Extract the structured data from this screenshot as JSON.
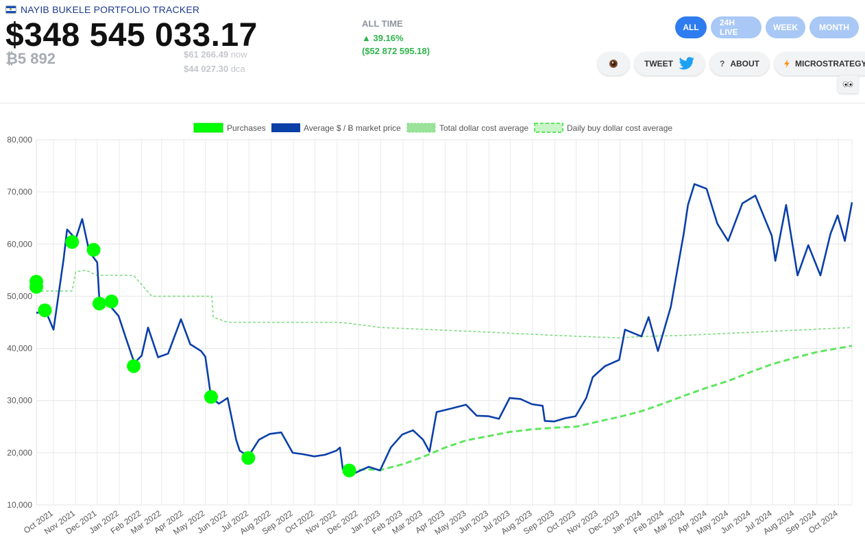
{
  "header": {
    "brand": "NAYIB BUKELE PORTFOLIO TRACKER",
    "total_value": "$348 545 033.17",
    "btc_holdings": "₿5 892",
    "price_now": "$61 266.49",
    "price_now_label": "now",
    "price_dca": "$44 027.30",
    "price_dca_label": "dca",
    "all_time_label": "ALL TIME",
    "all_time_pct": "▲ 39.16%",
    "all_time_amount": "($52 872 595.18)"
  },
  "tabs": [
    {
      "label": "ALL",
      "active": true
    },
    {
      "label": "24H LIVE",
      "active": false
    },
    {
      "label": "WEEK",
      "active": false
    },
    {
      "label": "MONTH",
      "active": false
    }
  ],
  "actions": {
    "coffee_icon": "coffee-icon",
    "tweet_label": "TWEET",
    "about_label": "ABOUT",
    "microstrategy_label": "MICROSTRATEGY",
    "eyes_icon": "eyes-icon"
  },
  "colors": {
    "accent": "#2f7cf0",
    "tab_inactive": "#a9c8f5",
    "positive": "#2db34a",
    "price_line": "#0a3fa8",
    "purchases": "#00ff00",
    "total_dca": "#7fdc7f",
    "daily_dca": "#5ee65e"
  },
  "chart_data": {
    "type": "line",
    "legend": [
      "Purchases",
      "Average $ / Ƀ market price",
      "Total dollar cost average",
      "Daily buy dollar cost average"
    ],
    "legend_position": "top-center",
    "x_ticks": [
      "Oct 2021",
      "Nov 2021",
      "Dec 2021",
      "Jan 2022",
      "Feb 2022",
      "Mar 2022",
      "Apr 2022",
      "May 2022",
      "Jun 2022",
      "Jul 2022",
      "Aug 2022",
      "Sep 2022",
      "Oct 2022",
      "Nov 2022",
      "Dec 2022",
      "Jan 2023",
      "Feb 2023",
      "Mar 2023",
      "Apr 2023",
      "May 2023",
      "Jun 2023",
      "Jul 2023",
      "Aug 2023",
      "Sep 2023",
      "Oct 2023",
      "Nov 2023",
      "Dec 2023",
      "Jan 2024",
      "Feb 2024",
      "Mar 2024",
      "Apr 2024",
      "May 2024",
      "Jun 2024",
      "Jul 2024",
      "Aug 2024",
      "Sep 2024",
      "Oct 2024"
    ],
    "y_ticks": [
      "10,000",
      "20,000",
      "30,000",
      "40,000",
      "50,000",
      "60,000",
      "70,000",
      "80,000"
    ],
    "ylim": [
      10000,
      80000
    ],
    "grid": true,
    "series": [
      {
        "name": "Average $ / Ƀ market price",
        "x": [
          "2021-09-07",
          "2021-09-20",
          "2021-10-01",
          "2021-10-15",
          "2021-10-20",
          "2021-11-01",
          "2021-11-10",
          "2021-11-20",
          "2021-12-01",
          "2021-12-04",
          "2021-12-15",
          "2021-12-31",
          "2022-01-10",
          "2022-01-22",
          "2022-02-01",
          "2022-02-10",
          "2022-02-24",
          "2022-03-10",
          "2022-03-28",
          "2022-04-10",
          "2022-04-25",
          "2022-05-01",
          "2022-05-09",
          "2022-05-20",
          "2022-06-01",
          "2022-06-13",
          "2022-06-18",
          "2022-06-30",
          "2022-07-15",
          "2022-07-30",
          "2022-08-15",
          "2022-08-31",
          "2022-09-15",
          "2022-09-30",
          "2022-10-15",
          "2022-10-31",
          "2022-11-05",
          "2022-11-09",
          "2022-11-21",
          "2022-12-15",
          "2022-12-31",
          "2023-01-15",
          "2023-01-31",
          "2023-02-15",
          "2023-03-01",
          "2023-03-10",
          "2023-03-20",
          "2023-04-10",
          "2023-04-30",
          "2023-05-15",
          "2023-06-01",
          "2023-06-15",
          "2023-06-30",
          "2023-07-15",
          "2023-07-31",
          "2023-08-15",
          "2023-08-18",
          "2023-08-31",
          "2023-09-15",
          "2023-09-30",
          "2023-10-15",
          "2023-10-24",
          "2023-11-10",
          "2023-11-30",
          "2023-12-08",
          "2023-12-31",
          "2024-01-10",
          "2024-01-23",
          "2024-02-10",
          "2024-02-28",
          "2024-03-05",
          "2024-03-14",
          "2024-03-31",
          "2024-04-15",
          "2024-04-30",
          "2024-05-20",
          "2024-06-07",
          "2024-06-30",
          "2024-07-05",
          "2024-07-20",
          "2024-08-05",
          "2024-08-20",
          "2024-09-06",
          "2024-09-20",
          "2024-09-30",
          "2024-10-10",
          "2024-10-20"
        ],
        "values": [
          46800,
          47200,
          43600,
          57000,
          62800,
          61000,
          64800,
          58500,
          56500,
          49500,
          48800,
          46200,
          42000,
          37200,
          38600,
          44000,
          38300,
          39000,
          45600,
          40800,
          39500,
          38400,
          30600,
          29400,
          30500,
          22500,
          20400,
          19300,
          22500,
          23600,
          23900,
          20000,
          19700,
          19300,
          19600,
          20400,
          21000,
          16800,
          15800,
          17300,
          16600,
          21000,
          23500,
          24300,
          22500,
          20200,
          27800,
          28500,
          29200,
          27100,
          27000,
          26500,
          30500,
          30300,
          29300,
          29000,
          26100,
          26000,
          26600,
          27000,
          30500,
          34500,
          36600,
          37800,
          43600,
          42300,
          46000,
          39500,
          48000,
          62000,
          67500,
          71500,
          70600,
          63900,
          60600,
          67800,
          69300,
          61600,
          56800,
          67500,
          54000,
          59800,
          54000,
          62000,
          65500,
          60600,
          68000
        ]
      },
      {
        "name": "Total dollar cost average",
        "x": [
          "2021-09-07",
          "2021-09-20",
          "2021-10-15",
          "2021-10-27",
          "2021-11-01",
          "2021-11-15",
          "2021-12-01",
          "2021-12-15",
          "2022-01-10",
          "2022-01-21",
          "2022-02-15",
          "2022-03-15",
          "2022-04-15",
          "2022-05-10",
          "2022-05-12",
          "2022-06-01",
          "2022-06-30",
          "2022-07-01",
          "2022-09-01",
          "2022-11-01",
          "2022-11-18",
          "2023-01-01",
          "2023-05-01",
          "2023-09-01",
          "2023-12-01",
          "2024-01-01",
          "2024-03-01",
          "2024-10-20"
        ],
        "values": [
          51000,
          51000,
          51000,
          51000,
          54700,
          55000,
          54000,
          54000,
          54000,
          54000,
          50000,
          50000,
          50000,
          50000,
          46000,
          45000,
          45000,
          45000,
          45000,
          45000,
          44800,
          44000,
          43300,
          42500,
          42000,
          42300,
          42500,
          44000
        ]
      },
      {
        "name": "Daily buy dollar cost average",
        "x": [
          "2022-11-18",
          "2022-12-15",
          "2023-01-01",
          "2023-02-01",
          "2023-03-01",
          "2023-04-01",
          "2023-05-01",
          "2023-06-01",
          "2023-07-01",
          "2023-08-01",
          "2023-09-01",
          "2023-10-01",
          "2023-11-01",
          "2023-12-01",
          "2024-01-01",
          "2024-02-01",
          "2024-03-01",
          "2024-04-01",
          "2024-05-01",
          "2024-06-01",
          "2024-07-01",
          "2024-08-01",
          "2024-09-01",
          "2024-10-20"
        ],
        "values": [
          16600,
          16800,
          16700,
          17800,
          19200,
          21000,
          22400,
          23200,
          24000,
          24500,
          24800,
          25000,
          26000,
          26900,
          28000,
          29500,
          31000,
          32500,
          33800,
          35500,
          37000,
          38200,
          39300,
          40500
        ]
      }
    ],
    "purchases": {
      "name": "Purchases",
      "x": [
        "2021-09-07",
        "2021-09-07",
        "2021-09-19",
        "2021-10-27",
        "2021-11-26",
        "2021-12-04",
        "2021-12-21",
        "2022-01-21",
        "2022-05-09",
        "2022-06-30",
        "2022-11-18"
      ],
      "values": [
        51800,
        52800,
        47300,
        60400,
        58900,
        48600,
        49000,
        36600,
        30700,
        19000,
        16600
      ]
    }
  }
}
